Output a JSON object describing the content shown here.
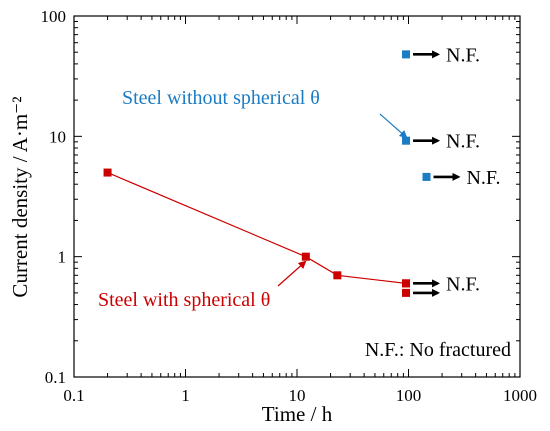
{
  "chart_data": {
    "type": "scatter",
    "x_scale": "log",
    "y_scale": "log",
    "xlim": [
      0.1,
      1000
    ],
    "ylim": [
      0.1,
      100
    ],
    "xlabel": "Time / h",
    "ylabel": "Current density  / A·m⁻²",
    "x_tick_labels": [
      "0.1",
      "1",
      "10",
      "100",
      "1000"
    ],
    "y_tick_labels": [
      "0.1",
      "1",
      "10",
      "100"
    ],
    "grid": false,
    "series": [
      {
        "name": "Steel with spherical θ",
        "color": "#cc0000",
        "connected": true,
        "points": [
          {
            "x": 0.2,
            "y": 5.0
          },
          {
            "x": 12,
            "y": 1.0
          },
          {
            "x": 23,
            "y": 0.7
          },
          {
            "x": 95,
            "y": 0.6
          }
        ]
      },
      {
        "name": "Steel with spherical θ (not fractured)",
        "color": "#cc0000",
        "connected": false,
        "points": [
          {
            "x": 95,
            "y": 0.6,
            "nf": true
          },
          {
            "x": 95,
            "y": 0.5,
            "nf": true
          }
        ]
      },
      {
        "name": "Steel without spherical θ",
        "color": "#1b7cc4",
        "connected": false,
        "points": [
          {
            "x": 95,
            "y": 48,
            "nf": true
          },
          {
            "x": 95,
            "y": 9.2,
            "nf": true
          },
          {
            "x": 145,
            "y": 4.6,
            "nf": true
          }
        ]
      }
    ],
    "nf_label": "N.F.",
    "annotations": {
      "without": "Steel without spherical θ",
      "with": "Steel with spherical θ",
      "note": "N.F.: No fractured"
    }
  }
}
